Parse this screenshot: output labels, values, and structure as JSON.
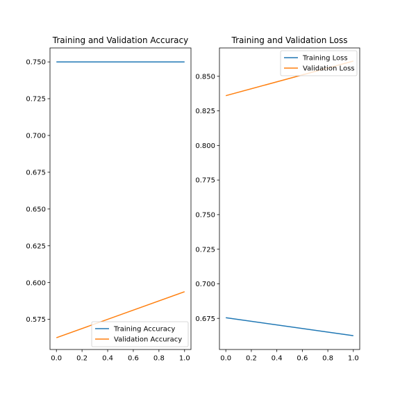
{
  "chart_data": [
    {
      "type": "line",
      "title": "Training and Validation Accuracy",
      "x": [
        0.0,
        1.0
      ],
      "xlim": [
        -0.05,
        1.05
      ],
      "ylim": [
        0.5545,
        0.7595
      ],
      "xticks": [
        0.0,
        0.2,
        0.4,
        0.6,
        0.8,
        1.0
      ],
      "xtick_labels": [
        "0.0",
        "0.2",
        "0.4",
        "0.6",
        "0.8",
        "1.0"
      ],
      "yticks": [
        0.575,
        0.6,
        0.625,
        0.65,
        0.675,
        0.7,
        0.725,
        0.75
      ],
      "ytick_labels": [
        "0.575",
        "0.600",
        "0.625",
        "0.650",
        "0.675",
        "0.700",
        "0.725",
        "0.750"
      ],
      "grid": false,
      "legend_position": "lower right",
      "series": [
        {
          "name": "Training Accuracy",
          "color": "#1f77b4",
          "values": [
            0.75,
            0.75
          ]
        },
        {
          "name": "Validation Accuracy",
          "color": "#ff7f0e",
          "values": [
            0.5625,
            0.5938
          ]
        }
      ]
    },
    {
      "type": "line",
      "title": "Training and Validation Loss",
      "x": [
        0.0,
        1.0
      ],
      "xlim": [
        -0.05,
        1.05
      ],
      "ylim": [
        0.6525,
        0.8705
      ],
      "xticks": [
        0.0,
        0.2,
        0.4,
        0.6,
        0.8,
        1.0
      ],
      "xtick_labels": [
        "0.0",
        "0.2",
        "0.4",
        "0.6",
        "0.8",
        "1.0"
      ],
      "yticks": [
        0.675,
        0.7,
        0.725,
        0.75,
        0.775,
        0.8,
        0.825,
        0.85
      ],
      "ytick_labels": [
        "0.675",
        "0.700",
        "0.725",
        "0.750",
        "0.775",
        "0.800",
        "0.825",
        "0.850"
      ],
      "grid": false,
      "legend_position": "upper right",
      "series": [
        {
          "name": "Training Loss",
          "color": "#1f77b4",
          "values": [
            0.6755,
            0.6625
          ]
        },
        {
          "name": "Validation Loss",
          "color": "#ff7f0e",
          "values": [
            0.836,
            0.861
          ]
        }
      ]
    }
  ]
}
